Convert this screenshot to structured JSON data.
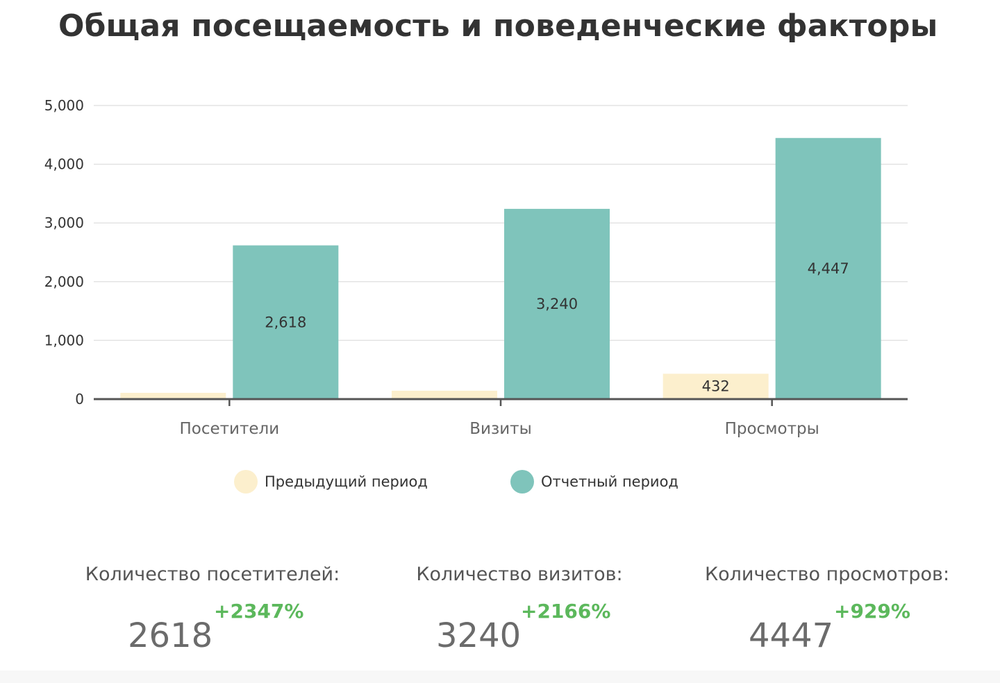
{
  "title": "Общая посещаемость и поведенческие факторы",
  "colors": {
    "previous": "#fcefcd",
    "current": "#7fc4bb",
    "positive": "#5cb85c"
  },
  "legend": [
    {
      "label": "Предыдущий период",
      "color": "#fcefcd"
    },
    {
      "label": "Отчетный период",
      "color": "#7fc4bb"
    }
  ],
  "chart_data": {
    "type": "bar",
    "categories": [
      "Посетители",
      "Визиты",
      "Просмотры"
    ],
    "series": [
      {
        "name": "Предыдущий период",
        "values": [
          107,
          143,
          432
        ],
        "labels": [
          "",
          "",
          "432"
        ]
      },
      {
        "name": "Отчетный период",
        "values": [
          2618,
          3240,
          4447
        ],
        "labels": [
          "2,618",
          "3,240",
          "4,447"
        ]
      }
    ],
    "ylim": [
      0,
      5000
    ],
    "yticks": [
      0,
      1000,
      2000,
      3000,
      4000,
      5000
    ],
    "ytick_labels": [
      "0",
      "1,000",
      "2,000",
      "3,000",
      "4,000",
      "5,000"
    ],
    "grid": true,
    "legend_position": "bottom"
  },
  "stats": [
    {
      "label": "Количество посетителей:",
      "value": "2618",
      "change": "+2347%"
    },
    {
      "label": "Количество визитов:",
      "value": "3240",
      "change": "+2166%"
    },
    {
      "label": "Количество просмотров:",
      "value": "4447",
      "change": "+929%"
    }
  ]
}
